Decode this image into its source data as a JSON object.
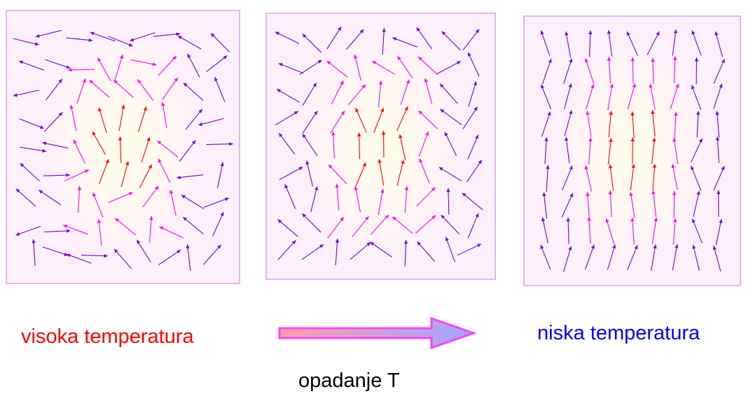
{
  "labels": {
    "high_temperature": "visoka temperatura",
    "low_temperature": "niska temperatura",
    "decreasing": "opadanje T"
  },
  "colors": {
    "high_text": "#ff0000",
    "low_text": "#0000ff",
    "panel_border": "#e8b4f0",
    "panel_fill": "#fdf0fa",
    "glow": "#ffffe6",
    "arrow_gradient_start": "#ff9fa8",
    "arrow_gradient_end": "#9fa6ff",
    "arrow_outline": "#ff40ff",
    "spin_aligned": "#ff0000",
    "spin_partial": "#ff00ff",
    "spin_random": "#7a00cc"
  },
  "panels": [
    {
      "name": "high-temperature-spins",
      "disorder": 0.9
    },
    {
      "name": "intermediate-temperature-spins",
      "disorder": 0.55
    },
    {
      "name": "low-temperature-spins",
      "disorder": 0.2
    }
  ]
}
